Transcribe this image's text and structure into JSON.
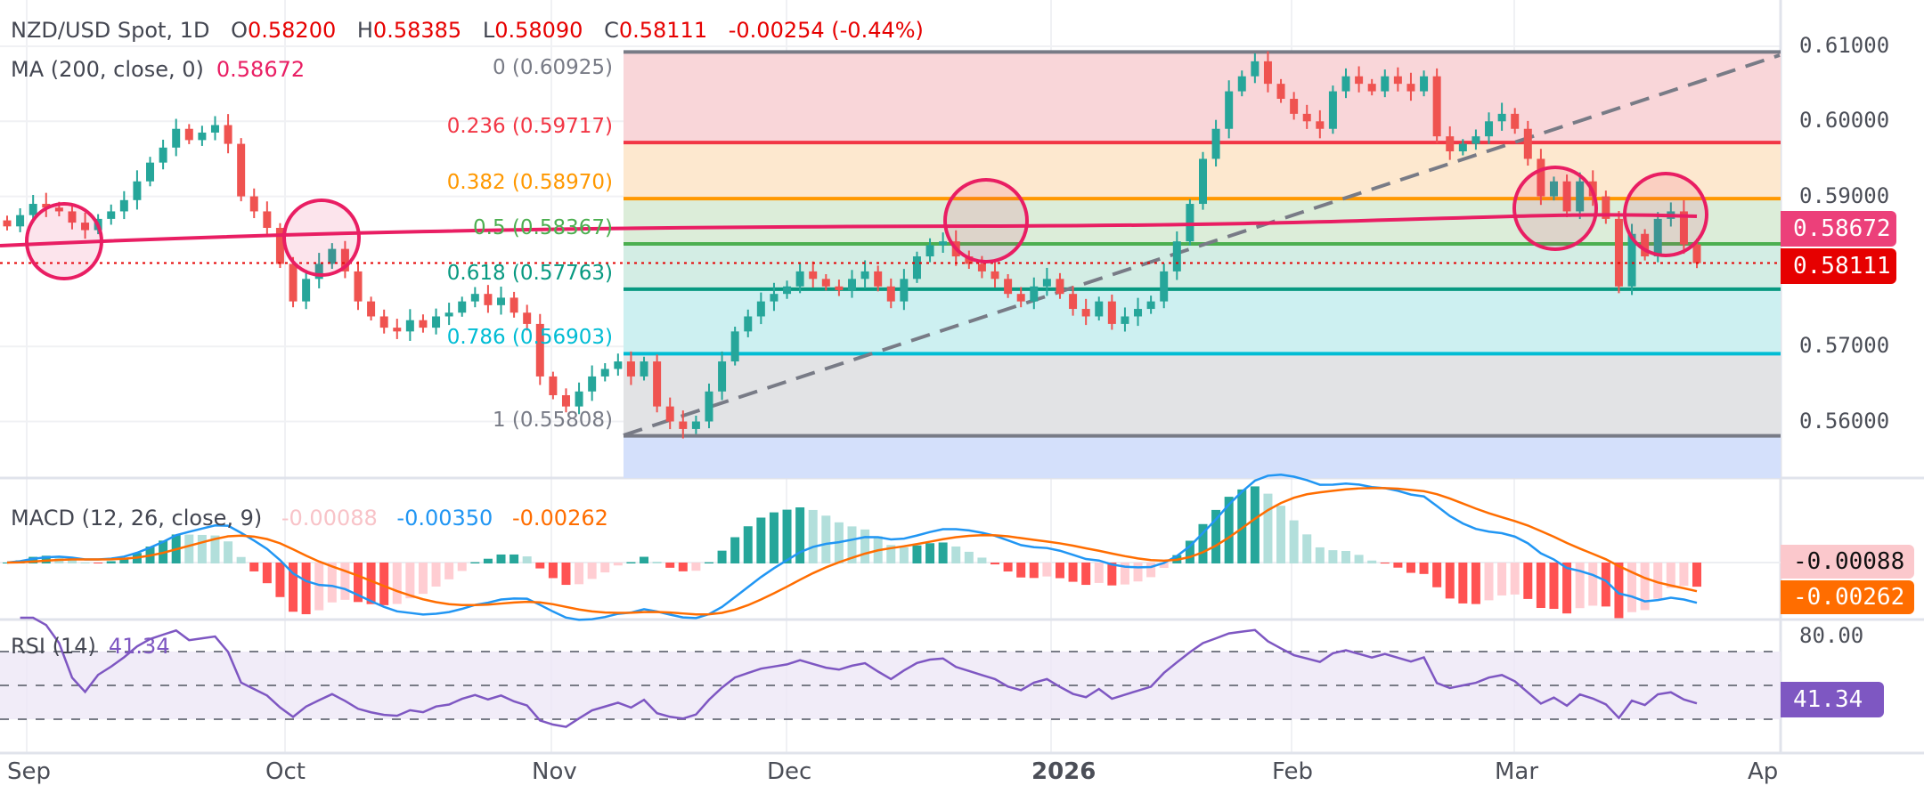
{
  "header": {
    "symbol": "NZD/USD Spot, 1D",
    "open_label": "O",
    "open": "0.58200",
    "high_label": "H",
    "high": "0.58385",
    "low_label": "L",
    "low": "0.58090",
    "close_label": "C",
    "close": "0.58111",
    "change": "-0.00254 (-0.44%)",
    "ma_label": "MA (200, close, 0)",
    "ma_value": "0.58672"
  },
  "colors": {
    "up": "#26a69a",
    "down": "#ef5350",
    "ma": "#e91e63",
    "macd": "#2196f3",
    "signal": "#ff6d00",
    "rsi": "#7e57c2",
    "accent_red": "#e60000"
  },
  "fib_levels": [
    {
      "ratio": 0,
      "price": 0.60925,
      "label": "0 (0.60925)",
      "color": "#787b86",
      "fill": "#f9d6d9"
    },
    {
      "ratio": 0.236,
      "price": 0.59717,
      "label": "0.236 (0.59717)",
      "color": "#f23645",
      "fill": "#fde8cf"
    },
    {
      "ratio": 0.382,
      "price": 0.5897,
      "label": "0.382 (0.58970)",
      "color": "#ff9800",
      "fill": "#dcedd9"
    },
    {
      "ratio": 0.5,
      "price": 0.58367,
      "label": "0.5 (0.58367)",
      "color": "#4caf50",
      "fill": "#d3ede4"
    },
    {
      "ratio": 0.618,
      "price": 0.57763,
      "label": "0.618 (0.57763)",
      "color": "#089981",
      "fill": "#cdf0f1"
    },
    {
      "ratio": 0.786,
      "price": 0.56903,
      "label": "0.786 (0.56903)",
      "color": "#00bcd4",
      "fill": "#e2e3e5"
    },
    {
      "ratio": 1,
      "price": 0.55808,
      "label": "1 (0.55808)",
      "color": "#787b86",
      "fill": "#d4e0fb"
    }
  ],
  "price_axis": [
    "0.61000",
    "0.60000",
    "0.59000",
    "0.57000",
    "0.56000"
  ],
  "price_ticks": [
    0.61,
    0.6,
    0.59,
    0.57,
    0.56
  ],
  "price_tags": {
    "ma": "0.58672",
    "last": "0.58111"
  },
  "macd": {
    "label": "MACD (12, 26, close, 9)",
    "hist": "-0.00088",
    "macd": "-0.00350",
    "signal": "-0.00262",
    "tag_hist": "-0.00088",
    "tag_signal": "-0.00262"
  },
  "rsi": {
    "label": "RSI (14)",
    "value": "41.34",
    "axis": "80.00",
    "tag": "41.34"
  },
  "time_axis": [
    "Sep",
    "Oct",
    "Nov",
    "Dec",
    "2026",
    "Feb",
    "Mar",
    "Ap"
  ],
  "closes": [
    0.586,
    0.5875,
    0.589,
    0.5885,
    0.588,
    0.5865,
    0.5855,
    0.587,
    0.588,
    0.5895,
    0.592,
    0.5945,
    0.5965,
    0.599,
    0.5975,
    0.5985,
    0.5995,
    0.597,
    0.59,
    0.588,
    0.5858,
    0.581,
    0.576,
    0.579,
    0.581,
    0.583,
    0.58,
    0.576,
    0.574,
    0.5725,
    0.572,
    0.5735,
    0.5725,
    0.574,
    0.5745,
    0.576,
    0.577,
    0.5755,
    0.5765,
    0.5745,
    0.573,
    0.566,
    0.5635,
    0.562,
    0.564,
    0.566,
    0.567,
    0.568,
    0.566,
    0.568,
    0.562,
    0.56,
    0.559,
    0.56,
    0.564,
    0.568,
    0.572,
    0.574,
    0.576,
    0.577,
    0.578,
    0.58,
    0.579,
    0.578,
    0.5775,
    0.579,
    0.58,
    0.578,
    0.576,
    0.579,
    0.582,
    0.5835,
    0.584,
    0.582,
    0.581,
    0.58,
    0.579,
    0.577,
    0.576,
    0.578,
    0.579,
    0.577,
    0.575,
    0.574,
    0.576,
    0.573,
    0.574,
    0.575,
    0.576,
    0.58,
    0.584,
    0.589,
    0.595,
    0.599,
    0.604,
    0.606,
    0.608,
    0.605,
    0.603,
    0.601,
    0.6,
    0.599,
    0.604,
    0.606,
    0.605,
    0.604,
    0.606,
    0.605,
    0.604,
    0.606,
    0.598,
    0.596,
    0.597,
    0.598,
    0.6,
    0.601,
    0.599,
    0.595,
    0.59,
    0.592,
    0.588,
    0.592,
    0.59,
    0.587,
    0.578,
    0.585,
    0.582,
    0.587,
    0.588,
    0.5836,
    0.5811
  ]
}
